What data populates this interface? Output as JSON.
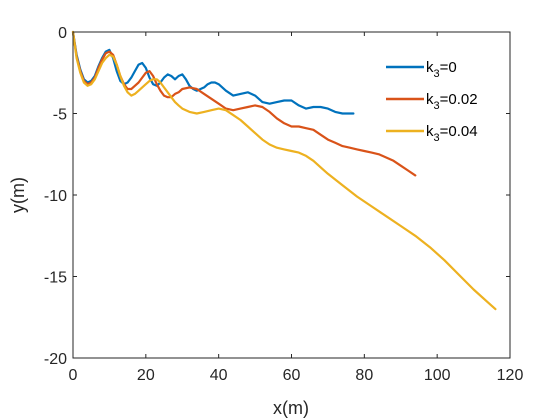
{
  "chart_data": {
    "type": "line",
    "xlabel": "x(m)",
    "ylabel": "y(m)",
    "xlim": [
      0,
      120
    ],
    "ylim": [
      -20,
      0
    ],
    "xticks": [
      0,
      20,
      40,
      60,
      80,
      100,
      120
    ],
    "yticks": [
      0,
      -5,
      -10,
      -15,
      -20
    ],
    "grid": false,
    "legend_position": "top-right",
    "series": [
      {
        "name": "k3=0",
        "label_main": "k",
        "label_sub": "3",
        "label_rest": "=0",
        "color": "#0072BD",
        "x": [
          0,
          1,
          2,
          3,
          4,
          5,
          6,
          7,
          8,
          9,
          10,
          11,
          12,
          13,
          14,
          15,
          16,
          17,
          18,
          19,
          20,
          21,
          22,
          23,
          24,
          25,
          26,
          27,
          28,
          29,
          30,
          31,
          32,
          33,
          34,
          35,
          36,
          37,
          38,
          39,
          40,
          42,
          44,
          46,
          48,
          50,
          52,
          54,
          56,
          58,
          60,
          62,
          64,
          66,
          68,
          70,
          72,
          74,
          76,
          77
        ],
        "y": [
          0,
          -1.4,
          -2.3,
          -2.9,
          -3.1,
          -3.0,
          -2.7,
          -2.1,
          -1.6,
          -1.2,
          -1.1,
          -1.6,
          -2.4,
          -3.0,
          -3.2,
          -3.1,
          -2.8,
          -2.4,
          -2.0,
          -1.9,
          -2.2,
          -2.8,
          -3.2,
          -3.3,
          -3.1,
          -2.8,
          -2.6,
          -2.7,
          -2.9,
          -2.7,
          -2.6,
          -2.9,
          -3.3,
          -3.5,
          -3.6,
          -3.5,
          -3.4,
          -3.2,
          -3.1,
          -3.1,
          -3.2,
          -3.6,
          -3.9,
          -3.8,
          -3.7,
          -3.9,
          -4.3,
          -4.4,
          -4.3,
          -4.2,
          -4.2,
          -4.5,
          -4.7,
          -4.6,
          -4.6,
          -4.7,
          -4.9,
          -5.0,
          -5.0,
          -5.0
        ]
      },
      {
        "name": "k3=0.02",
        "label_main": "k",
        "label_sub": "3",
        "label_rest": "=0.02",
        "color": "#D95319",
        "x": [
          0,
          1,
          2,
          3,
          4,
          5,
          6,
          7,
          8,
          9,
          10,
          11,
          12,
          13,
          14,
          15,
          16,
          17,
          18,
          19,
          20,
          21,
          22,
          23,
          24,
          25,
          26,
          27,
          28,
          29,
          30,
          32,
          34,
          36,
          38,
          40,
          42,
          44,
          46,
          48,
          50,
          52,
          54,
          56,
          58,
          60,
          62,
          64,
          66,
          68,
          70,
          72,
          74,
          76,
          78,
          80,
          82,
          84,
          86,
          88,
          90,
          92,
          94
        ],
        "y": [
          0,
          -1.5,
          -2.4,
          -3.0,
          -3.2,
          -3.1,
          -2.8,
          -2.2,
          -1.7,
          -1.3,
          -1.2,
          -1.4,
          -2.0,
          -2.7,
          -3.2,
          -3.5,
          -3.5,
          -3.3,
          -3.1,
          -2.8,
          -2.5,
          -2.4,
          -2.7,
          -3.2,
          -3.6,
          -3.9,
          -4.0,
          -4.0,
          -3.8,
          -3.7,
          -3.5,
          -3.4,
          -3.5,
          -3.8,
          -4.1,
          -4.4,
          -4.7,
          -4.8,
          -4.7,
          -4.6,
          -4.5,
          -4.6,
          -4.9,
          -5.3,
          -5.6,
          -5.8,
          -5.8,
          -5.9,
          -6.0,
          -6.3,
          -6.6,
          -6.8,
          -7.0,
          -7.1,
          -7.2,
          -7.3,
          -7.4,
          -7.5,
          -7.7,
          -7.9,
          -8.2,
          -8.5,
          -8.8
        ]
      },
      {
        "name": "k3=0.04",
        "label_main": "k",
        "label_sub": "3",
        "label_rest": "=0.04",
        "color": "#EDB120",
        "x": [
          0,
          1,
          2,
          3,
          4,
          5,
          6,
          7,
          8,
          9,
          10,
          11,
          12,
          13,
          14,
          15,
          16,
          17,
          18,
          19,
          20,
          21,
          22,
          23,
          24,
          25,
          26,
          27,
          28,
          29,
          30,
          32,
          34,
          36,
          38,
          40,
          42,
          44,
          46,
          48,
          50,
          52,
          54,
          56,
          58,
          60,
          62,
          64,
          66,
          68,
          70,
          74,
          78,
          82,
          86,
          90,
          94,
          98,
          102,
          106,
          110,
          114,
          116
        ],
        "y": [
          0,
          -1.6,
          -2.5,
          -3.1,
          -3.3,
          -3.2,
          -2.9,
          -2.4,
          -1.9,
          -1.6,
          -1.4,
          -1.5,
          -2.0,
          -2.7,
          -3.3,
          -3.7,
          -3.9,
          -3.8,
          -3.6,
          -3.4,
          -3.2,
          -3.0,
          -2.9,
          -2.9,
          -3.1,
          -3.4,
          -3.7,
          -4.0,
          -4.3,
          -4.5,
          -4.7,
          -4.9,
          -5.0,
          -4.9,
          -4.8,
          -4.7,
          -4.8,
          -5.1,
          -5.4,
          -5.8,
          -6.2,
          -6.6,
          -6.9,
          -7.1,
          -7.2,
          -7.3,
          -7.4,
          -7.6,
          -7.9,
          -8.3,
          -8.7,
          -9.4,
          -10.1,
          -10.7,
          -11.3,
          -11.9,
          -12.5,
          -13.2,
          -14.0,
          -14.9,
          -15.8,
          -16.6,
          -17.0
        ]
      }
    ]
  }
}
